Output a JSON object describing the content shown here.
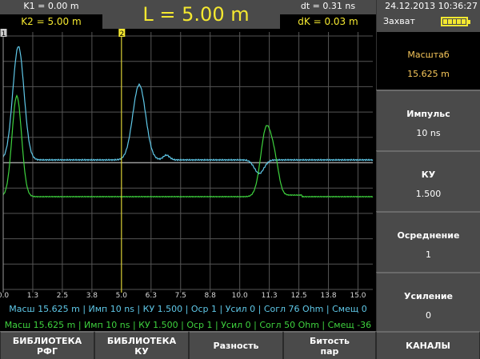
{
  "header": {
    "k1": "K1 = 0.00 m",
    "k2": "K2 = 5.00 m",
    "length": "L = 5.00 m",
    "dt": "dt = 0.31 ns",
    "dk": "dK = 0.03 m",
    "datetime": "24.12.2013 10:36:27",
    "mode": "Захват",
    "battery_icon": "battery-full-icon",
    "battery_level": 1.0
  },
  "plot": {
    "x_ticks": [
      "0.0",
      "1.3",
      "2.5",
      "3.8",
      "5.0",
      "6.3",
      "7.5",
      "8.8",
      "10.0",
      "11.3",
      "12.5",
      "13.8",
      "15.0"
    ],
    "x_range_m": [
      0,
      15.625
    ],
    "marker1": {
      "label": "1",
      "position_m": 0.0
    },
    "marker2": {
      "label": "2",
      "position_m": 5.0
    },
    "colors": {
      "trace1": "#5fc8e8",
      "trace2": "#3ed23e",
      "marker2": "#f4e830",
      "grid": "#555555"
    }
  },
  "info": {
    "line1": "Масш 15.625 m | Имп 10 ns | КУ 1.500 | Оср 1 | Усил 0 | Согл 76 Ohm | Смещ 0",
    "line2": "Масш 15.625 m | Имп 10 ns | КУ 1.500 | Оср 1 | Усил 0 | Согл 50 Ohm | Смещ -36"
  },
  "panel": [
    {
      "label": "Масштаб",
      "value": "15.625 m"
    },
    {
      "label": "Импульс",
      "value": "10 ns"
    },
    {
      "label": "КУ",
      "value": "1.500"
    },
    {
      "label": "Осреднение",
      "value": "1"
    },
    {
      "label": "Усиление",
      "value": "0"
    }
  ],
  "buttons": [
    "БИБЛИОТЕКА\nРФГ",
    "БИБЛИОТЕКА\nКУ",
    "Разность",
    "Битость\nпар",
    "КАНАЛЫ"
  ]
}
